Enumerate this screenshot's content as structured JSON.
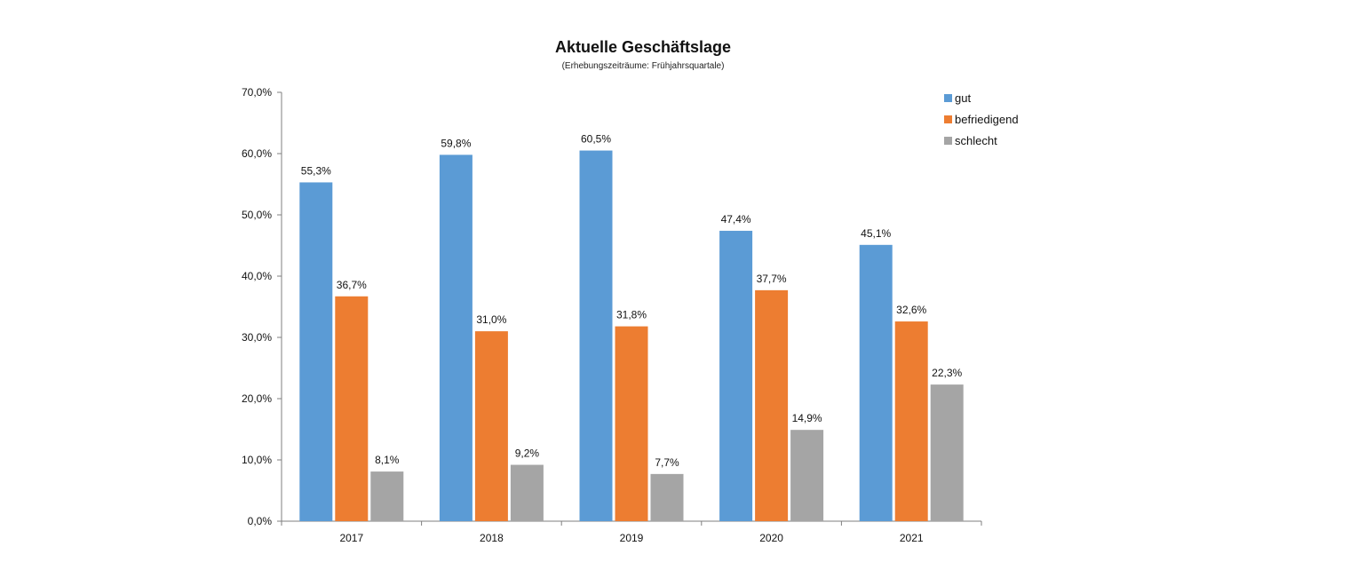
{
  "chart_data": {
    "type": "bar",
    "title": "Aktuelle Geschäftslage",
    "subtitle": "(Erhebungszeiträume: Frühjahrsquartale)",
    "xlabel": "",
    "ylabel": "",
    "categories": [
      "2017",
      "2018",
      "2019",
      "2020",
      "2021"
    ],
    "series": [
      {
        "name": "gut",
        "color": "#5b9bd5",
        "values": [
          55.3,
          59.8,
          60.5,
          47.4,
          45.1
        ],
        "labels": [
          "55,3%",
          "59,8%",
          "60,5%",
          "47,4%",
          "45,1%"
        ]
      },
      {
        "name": "befriedigend",
        "color": "#ed7d31",
        "values": [
          36.7,
          31.0,
          31.8,
          37.7,
          32.6
        ],
        "labels": [
          "36,7%",
          "31,0%",
          "31,8%",
          "37,7%",
          "32,6%"
        ]
      },
      {
        "name": "schlecht",
        "color": "#a5a5a5",
        "values": [
          8.1,
          9.2,
          7.7,
          14.9,
          22.3
        ],
        "labels": [
          "8,1%",
          "9,2%",
          "7,7%",
          "14,9%",
          "22,3%"
        ]
      }
    ],
    "ylim": [
      0,
      70
    ],
    "yticks": [
      0,
      10,
      20,
      30,
      40,
      50,
      60,
      70
    ],
    "ytick_labels": [
      "0,0%",
      "10,0%",
      "20,0%",
      "30,0%",
      "40,0%",
      "50,0%",
      "60,0%",
      "70,0%"
    ],
    "grid": false,
    "legend_position": "top-right",
    "axis_color": "#7f7f7f"
  }
}
